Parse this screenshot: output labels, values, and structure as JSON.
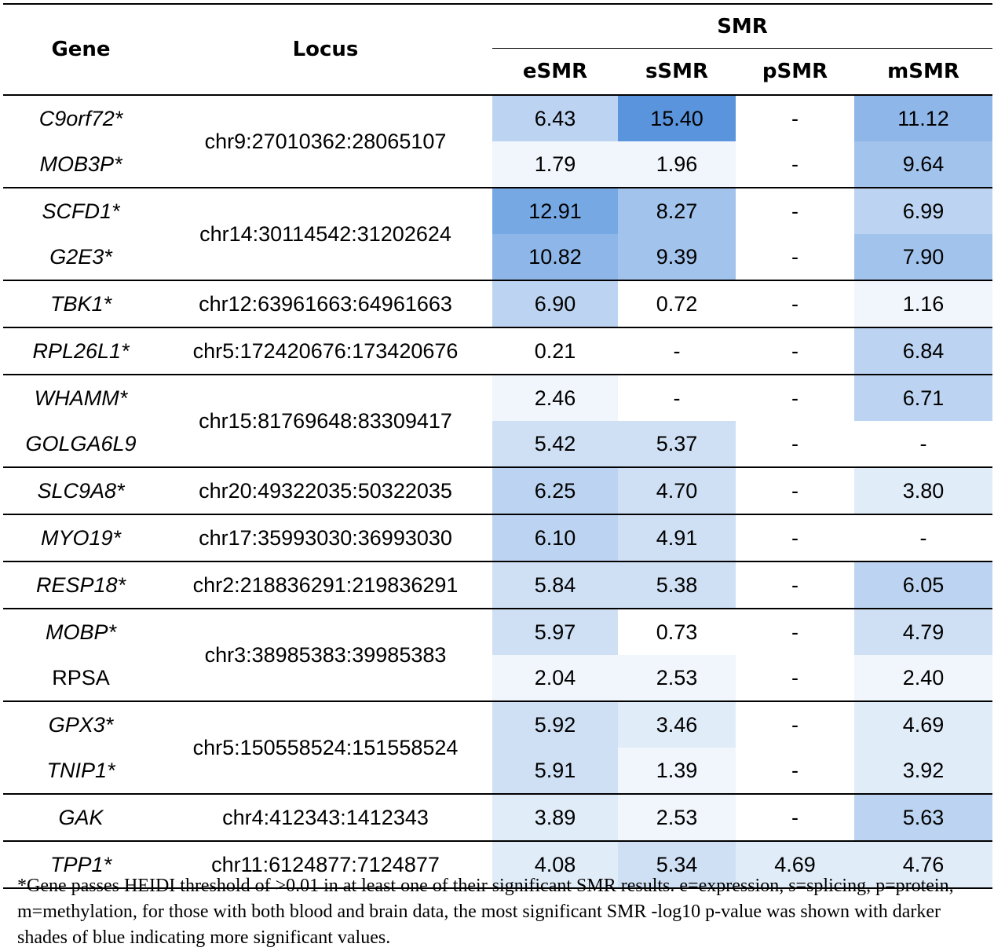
{
  "header": {
    "gene": "Gene",
    "locus": "Locus",
    "smr": "SMR",
    "columns": [
      "eSMR",
      "sSMR",
      "pSMR",
      "mSMR"
    ]
  },
  "colors": {
    "shade0": "#ffffff",
    "shade1": "#f1f6fd",
    "shade2": "#e1ecf9",
    "shade3": "#cfe0f5",
    "shade4": "#bcd4f1",
    "shade5": "#a2c3ec",
    "shade6": "#8fb6e8",
    "shade7": "#76a8e4",
    "shade8": "#5994dc"
  },
  "groups": [
    {
      "locus": "chr9:27010362:28065107",
      "rows": [
        {
          "gene": "C9orf72",
          "star": "*",
          "italic": true,
          "values": [
            "6.43",
            "15.40",
            "-",
            "11.12"
          ],
          "shades": [
            4,
            8,
            0,
            6
          ]
        },
        {
          "gene": "MOB3P",
          "star": "*",
          "italic": true,
          "values": [
            "1.79",
            "1.96",
            "-",
            "9.64"
          ],
          "shades": [
            1,
            1,
            0,
            5
          ]
        }
      ]
    },
    {
      "locus": "chr14:30114542:31202624",
      "rows": [
        {
          "gene": "SCFD1",
          "star": "*",
          "italic": true,
          "values": [
            "12.91",
            "8.27",
            "-",
            "6.99"
          ],
          "shades": [
            7,
            5,
            0,
            4
          ]
        },
        {
          "gene": "G2E3",
          "star": "*",
          "italic": true,
          "values": [
            "10.82",
            "9.39",
            "-",
            "7.90"
          ],
          "shades": [
            6,
            5,
            0,
            5
          ]
        }
      ]
    },
    {
      "locus": "chr12:63961663:64961663",
      "rows": [
        {
          "gene": "TBK1",
          "star": "*",
          "italic": true,
          "values": [
            "6.90",
            "0.72",
            "-",
            "1.16"
          ],
          "shades": [
            4,
            0,
            0,
            1
          ]
        }
      ]
    },
    {
      "locus": "chr5:172420676:173420676",
      "rows": [
        {
          "gene": "RPL26L1",
          "star": "*",
          "italic": true,
          "values": [
            "0.21",
            "-",
            "-",
            "6.84"
          ],
          "shades": [
            0,
            0,
            0,
            4
          ]
        }
      ]
    },
    {
      "locus": "chr15:81769648:83309417",
      "rows": [
        {
          "gene": "WHAMM",
          "star": "*",
          "italic": true,
          "values": [
            "2.46",
            "-",
            "-",
            "6.71"
          ],
          "shades": [
            1,
            0,
            0,
            4
          ]
        },
        {
          "gene": "GOLGA6L9",
          "star": "",
          "italic": true,
          "values": [
            "5.42",
            "5.37",
            "-",
            "-"
          ],
          "shades": [
            3,
            3,
            0,
            0
          ]
        }
      ]
    },
    {
      "locus": "chr20:49322035:50322035",
      "rows": [
        {
          "gene": "SLC9A8",
          "star": "*",
          "italic": true,
          "values": [
            "6.25",
            "4.70",
            "-",
            "3.80"
          ],
          "shades": [
            4,
            3,
            0,
            2
          ]
        }
      ]
    },
    {
      "locus": "chr17:35993030:36993030",
      "rows": [
        {
          "gene": "MYO19",
          "star": "*",
          "italic": true,
          "values": [
            "6.10",
            "4.91",
            "-",
            "-"
          ],
          "shades": [
            4,
            3,
            0,
            0
          ]
        }
      ]
    },
    {
      "locus": "chr2:218836291:219836291",
      "rows": [
        {
          "gene": "RESP18",
          "star": "*",
          "italic": true,
          "values": [
            "5.84",
            "5.38",
            "-",
            "6.05"
          ],
          "shades": [
            3,
            3,
            0,
            4
          ]
        }
      ]
    },
    {
      "locus": "chr3:38985383:39985383",
      "rows": [
        {
          "gene": "MOBP",
          "star": "*",
          "italic": true,
          "values": [
            "5.97",
            "0.73",
            "-",
            "4.79"
          ],
          "shades": [
            3,
            0,
            0,
            3
          ]
        },
        {
          "gene": "RPSA",
          "star": "",
          "italic": false,
          "values": [
            "2.04",
            "2.53",
            "-",
            "2.40"
          ],
          "shades": [
            1,
            1,
            0,
            1
          ]
        }
      ]
    },
    {
      "locus": "chr5:150558524:151558524",
      "rows": [
        {
          "gene": "GPX3",
          "star": "*",
          "italic": true,
          "values": [
            "5.92",
            "3.46",
            "-",
            "4.69"
          ],
          "shades": [
            3,
            2,
            0,
            2
          ]
        },
        {
          "gene": "TNIP1",
          "star": "*",
          "italic": true,
          "values": [
            "5.91",
            "1.39",
            "-",
            "3.92"
          ],
          "shades": [
            3,
            1,
            0,
            2
          ]
        }
      ]
    },
    {
      "locus": "chr4:412343:1412343",
      "rows": [
        {
          "gene": "GAK",
          "star": "",
          "italic": true,
          "values": [
            "3.89",
            "2.53",
            "-",
            "5.63"
          ],
          "shades": [
            2,
            1,
            0,
            4
          ]
        }
      ]
    },
    {
      "locus": "chr11:6124877:7124877",
      "rows": [
        {
          "gene": "TPP1",
          "star": "*",
          "italic": true,
          "values": [
            "4.08",
            "5.34",
            "4.69",
            "4.76"
          ],
          "shades": [
            2,
            3,
            2,
            2
          ]
        }
      ]
    }
  ],
  "footnote": "*Gene passes HEIDI threshold of >0.01 in at least one of their significant SMR results. e=expression, s=splicing, p=protein, m=methylation, for those with both blood and brain data, the most significant SMR -log10 p-value was shown with darker shades of blue indicating more significant values."
}
